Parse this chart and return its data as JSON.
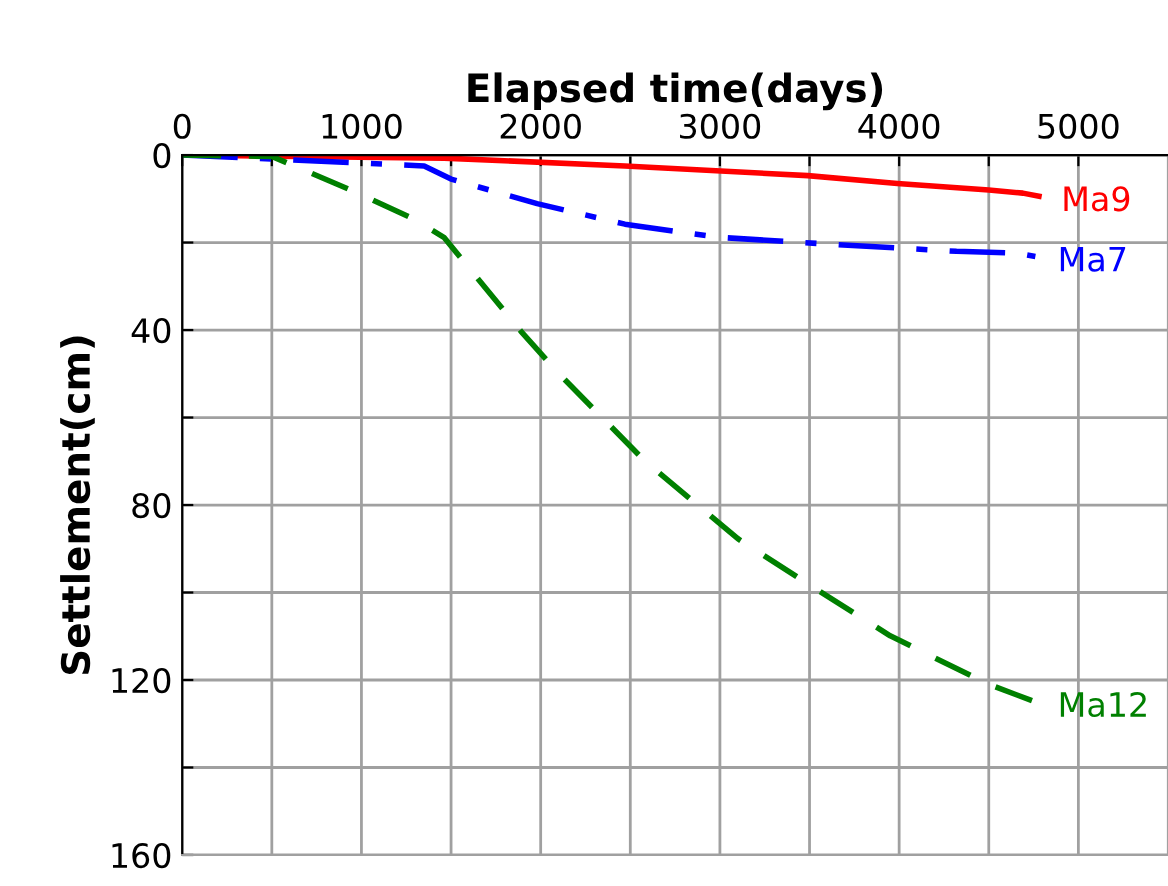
{
  "chart_data": {
    "type": "line",
    "xlabel": "Elapsed time(days)",
    "ylabel": "Settlement(cm)",
    "xlim": [
      0,
      5500
    ],
    "ylim": [
      160,
      0
    ],
    "xticks": [
      0,
      {
        "value": 500,
        "label": null
      },
      1000,
      {
        "value": 1500,
        "label": null
      },
      2000,
      {
        "value": 2500,
        "label": null
      },
      3000,
      {
        "value": 3500,
        "label": null
      },
      4000,
      {
        "value": 4500,
        "label": null
      },
      5000
    ],
    "yticks": [
      0,
      {
        "value": 20,
        "label": null
      },
      40,
      {
        "value": 60,
        "label": null
      },
      80,
      {
        "value": 100,
        "label": null
      },
      120,
      {
        "value": 140,
        "label": null
      },
      160
    ],
    "grid": true,
    "legend": false,
    "series": [
      {
        "name": "Ma9",
        "color": "#ff0000",
        "line_style": "solid",
        "x": [
          0,
          1460,
          2470,
          3490,
          3990,
          4500,
          4690,
          4780
        ],
        "values": [
          0,
          0.7,
          2.5,
          4.7,
          6.5,
          8,
          8.7,
          9.4
        ]
      },
      {
        "name": "Ma7",
        "color": "#0000ff",
        "line_style": "dashdot",
        "x": [
          0,
          1350,
          1500,
          1980,
          2470,
          2990,
          3580,
          4320,
          4650,
          4760
        ],
        "values": [
          0,
          2.5,
          5.5,
          11.1,
          15.8,
          18.8,
          20.3,
          22,
          22.4,
          23.2
        ]
      },
      {
        "name": "Ma12",
        "color": "#008000",
        "line_style": "dashed",
        "x": [
          0,
          500,
          980,
          1280,
          1460,
          1890,
          2100,
          2580,
          3100,
          3490,
          3950,
          4500,
          4760
        ],
        "values": [
          0,
          0.3,
          8.7,
          14.4,
          18.8,
          40.3,
          49.9,
          69.9,
          87.7,
          98,
          109.9,
          121,
          125
        ]
      }
    ]
  }
}
